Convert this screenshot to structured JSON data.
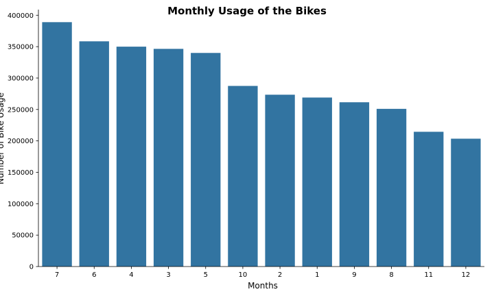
{
  "chart_data": {
    "type": "bar",
    "title": "Monthly Usage of the Bikes",
    "xlabel": "Months",
    "ylabel": "Number of Bike Usage",
    "categories": [
      "7",
      "6",
      "4",
      "3",
      "5",
      "10",
      "2",
      "1",
      "9",
      "8",
      "11",
      "12"
    ],
    "values": [
      389000,
      358500,
      350000,
      346500,
      340000,
      287500,
      273500,
      269000,
      261500,
      251000,
      214500,
      203500
    ],
    "ylim": [
      0,
      409000
    ],
    "yticks": [
      0,
      50000,
      100000,
      150000,
      200000,
      250000,
      300000,
      350000,
      400000
    ],
    "ytick_labels": [
      "0",
      "50000",
      "100000",
      "150000",
      "200000",
      "250000",
      "300000",
      "350000",
      "400000"
    ],
    "grid": false,
    "bar_color": "#3274a1"
  }
}
